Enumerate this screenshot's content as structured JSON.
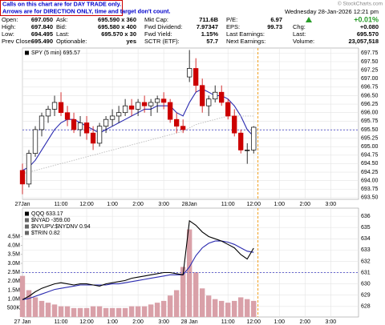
{
  "header": {
    "notice": [
      "Calls on this chart are for DAY TRADE only.",
      "Arrows are for DIRECTION ONLY, time and target don't count."
    ],
    "copyright": "© StockCharts.com",
    "date": "Wednesday 28-Jan-2026 12:21 pm",
    "quote": [
      [
        [
          "Open:",
          "697.050"
        ],
        [
          "Ask:",
          "695.590 x 360"
        ],
        [
          "Mkt Cap:",
          "711.6B"
        ],
        [
          "P/E:",
          "6.97"
        ],
        [
          "+0.01%"
        ]
      ],
      [
        [
          "High:",
          "697.840"
        ],
        [
          "Bid:",
          "695.580 x 400"
        ],
        [
          "Fwd Dividend:",
          "7.97347"
        ],
        [
          "EPS:",
          "99.73"
        ],
        [
          "Chg:",
          "+0.080"
        ]
      ],
      [
        [
          "Low:",
          "694.495"
        ],
        [
          "Last:",
          "695.570 x 30"
        ],
        [
          "Fwd Yield:",
          "1.15%"
        ],
        [
          "Last Earnings:"
        ],
        [
          "Last:",
          "695.570"
        ]
      ],
      [
        [
          "Prev Close:",
          "695.490"
        ],
        [
          "Optionable:",
          "yes"
        ],
        [
          "SCTR (ETF):",
          "57.7"
        ],
        [
          "Next Earnings:"
        ],
        [
          "Volume:",
          "23,057,518"
        ]
      ]
    ]
  },
  "chart_data": [
    {
      "type": "candlestick",
      "title": "SPY (5 min) 695.57",
      "x": [
        0,
        3,
        6,
        9,
        12,
        15,
        18,
        21,
        24,
        27,
        30,
        33,
        36,
        39,
        42,
        45,
        48,
        51,
        54,
        57,
        60,
        63,
        66,
        69,
        72,
        75,
        78,
        81,
        84,
        87,
        90,
        93,
        96,
        99,
        102,
        105,
        108
      ],
      "open": [
        694.3,
        693.9,
        694.8,
        695.5,
        695.9,
        696.1,
        696.3,
        696.0,
        695.8,
        695.5,
        695.7,
        695.4,
        695.1,
        695.6,
        695.8,
        695.9,
        696.0,
        696.2,
        696.1,
        696.3,
        696.2,
        696.3,
        696.4,
        696.3,
        695.8,
        695.6,
        697.05,
        697.3,
        696.8,
        696.2,
        696.4,
        696.6,
        696.3,
        695.9,
        695.4,
        694.9,
        694.9
      ],
      "high": [
        694.5,
        694.9,
        695.6,
        696.0,
        696.2,
        696.5,
        696.6,
        696.2,
        696.0,
        695.9,
        695.9,
        695.6,
        695.7,
        695.9,
        696.1,
        696.2,
        696.4,
        696.4,
        696.4,
        696.5,
        696.4,
        696.5,
        696.6,
        696.4,
        696.0,
        695.8,
        697.84,
        697.6,
        697.0,
        696.5,
        696.8,
        696.8,
        696.4,
        696.1,
        695.5,
        695.1,
        695.6
      ],
      "low": [
        693.6,
        693.8,
        694.7,
        695.3,
        695.7,
        695.9,
        695.9,
        695.6,
        695.4,
        695.3,
        695.2,
        694.9,
        695.0,
        695.4,
        695.6,
        695.7,
        695.9,
        695.9,
        695.9,
        696.0,
        695.9,
        696.0,
        696.1,
        695.7,
        695.4,
        695.4,
        696.9,
        696.6,
        696.0,
        695.9,
        696.3,
        696.2,
        695.8,
        695.3,
        694.8,
        694.495,
        694.8
      ],
      "close": [
        693.9,
        694.8,
        695.5,
        695.9,
        696.1,
        696.3,
        696.0,
        695.8,
        695.5,
        695.7,
        695.4,
        695.1,
        695.6,
        695.8,
        695.9,
        696.0,
        696.2,
        696.1,
        696.3,
        696.2,
        696.3,
        696.4,
        696.3,
        695.8,
        695.6,
        695.5,
        697.3,
        696.8,
        696.2,
        696.4,
        696.6,
        696.3,
        695.9,
        695.4,
        694.9,
        694.9,
        695.57
      ],
      "up_color": "#000000",
      "down_color": "#cc0000",
      "series": [
        {
          "color": "#2b2bb0",
          "values": [
            694.3,
            694.4,
            694.6,
            694.9,
            695.2,
            695.5,
            695.7,
            695.8,
            695.8,
            695.7,
            695.6,
            695.5,
            695.4,
            695.5,
            695.6,
            695.7,
            695.8,
            695.9,
            696.0,
            696.1,
            696.1,
            696.2,
            696.2,
            696.2,
            696.0,
            695.9,
            696.3,
            696.6,
            696.7,
            696.6,
            696.5,
            696.5,
            696.4,
            696.2,
            695.9,
            695.5,
            695.3
          ]
        },
        {
          "color": "#bbbbbb",
          "dash": true,
          "values": [
            694.2,
            694.25,
            694.3,
            694.35,
            694.4,
            694.45,
            694.5,
            694.55,
            694.6,
            694.65,
            694.7,
            694.75,
            694.8,
            694.85,
            694.9,
            694.95,
            695.0,
            695.05,
            695.1,
            695.15,
            695.2,
            695.25,
            695.3,
            695.35,
            695.4,
            695.45,
            695.55,
            695.65,
            695.7,
            695.75,
            695.8,
            695.85,
            695.9,
            695.9,
            695.9,
            695.9,
            695.9
          ]
        }
      ],
      "hline": 695.49,
      "hline_color": "#5555cc",
      "vline": 110,
      "vline_color": "#f0a020",
      "xlim": [
        0,
        157
      ],
      "ylim": [
        693.45,
        697.9
      ],
      "xticks": [
        {
          "value": 0,
          "label": "27Jan"
        },
        {
          "value": 18,
          "label": "11:00"
        },
        {
          "value": 30,
          "label": "12:00"
        },
        {
          "value": 42,
          "label": "1:00"
        },
        {
          "value": 54,
          "label": "2:00"
        },
        {
          "value": 66,
          "label": "3:00"
        },
        {
          "value": 78,
          "label": "28Jan"
        },
        {
          "value": 96,
          "label": "11:00"
        },
        {
          "value": 108,
          "label": "12:00"
        },
        {
          "value": 120,
          "label": "1:00"
        },
        {
          "value": 132,
          "label": "2:00"
        },
        {
          "value": 144,
          "label": "3:00"
        }
      ],
      "yticks": [
        {
          "value": 693.5,
          "label": "693.50"
        },
        693.75,
        {
          "value": 694,
          "label": "694.00"
        },
        694.25,
        {
          "value": 694.5,
          "label": "694.50"
        },
        694.75,
        {
          "value": 695,
          "label": "695.00"
        },
        695.25,
        {
          "value": 695.5,
          "label": "695.50"
        },
        695.75,
        {
          "value": 696,
          "label": "696.00"
        },
        696.25,
        {
          "value": 696.5,
          "label": "696.50"
        },
        696.75,
        {
          "value": 697,
          "label": "697.00"
        },
        697.25,
        {
          "value": 697.5,
          "label": "697.50"
        },
        697.75
      ],
      "grid": true
    },
    {
      "type": "line",
      "title": "QQQ 633.17",
      "legend": [
        "$NYAD -359.00",
        "$NYUPV:$NYDNV 0.94",
        "$TRIN 0.82"
      ],
      "x": [
        0,
        3,
        6,
        9,
        12,
        15,
        18,
        21,
        24,
        27,
        30,
        33,
        36,
        39,
        42,
        45,
        48,
        51,
        54,
        57,
        60,
        63,
        66,
        69,
        72,
        75,
        78,
        81,
        84,
        87,
        90,
        93,
        96,
        99,
        102,
        105,
        108
      ],
      "series": [
        {
          "color": "#d9a0a8",
          "type": "bar",
          "axis": "y2",
          "values": [
            2300000,
            1500000,
            1100000,
            900000,
            800000,
            700000,
            600000,
            600000,
            500000,
            500000,
            500000,
            600000,
            600000,
            500000,
            500000,
            500000,
            500000,
            600000,
            600000,
            600000,
            700000,
            800000,
            900000,
            1200000,
            1500000,
            2800000,
            4900000,
            2500000,
            1600000,
            1200000,
            1000000,
            900000,
            800000,
            900000,
            1100000,
            1000000,
            900000
          ]
        },
        {
          "color": "#2b2bb0",
          "values": [
            628.6,
            628.7,
            628.9,
            629.1,
            629.3,
            629.5,
            629.6,
            629.7,
            629.8,
            629.9,
            629.9,
            629.9,
            629.9,
            629.9,
            630.0,
            630.0,
            630.1,
            630.2,
            630.3,
            630.4,
            630.5,
            630.6,
            630.7,
            630.8,
            630.8,
            630.8,
            631.5,
            632.5,
            633.2,
            633.6,
            633.8,
            633.8,
            633.7,
            633.5,
            633.2,
            632.9,
            632.8
          ]
        },
        {
          "color": "#000000",
          "values": [
            628.6,
            628.9,
            629.3,
            629.6,
            629.8,
            630.0,
            630.1,
            630.0,
            629.9,
            630.0,
            630.0,
            629.9,
            629.8,
            630.0,
            630.1,
            630.2,
            630.3,
            630.5,
            630.6,
            630.7,
            630.8,
            630.9,
            631.0,
            631.0,
            630.9,
            630.8,
            635.6,
            635.2,
            634.6,
            634.2,
            634.0,
            633.8,
            633.5,
            633.2,
            632.6,
            632.2,
            633.17
          ]
        }
      ],
      "hline": 631.0,
      "hline_color": "#5555cc",
      "vline": 110,
      "vline_color": "#f0a020",
      "xlim": [
        0,
        157
      ],
      "ylim": [
        627.06,
        636.72
      ],
      "y2lim": [
        0,
        6090000
      ],
      "xticks": [
        {
          "value": 0,
          "label": "27 Jan"
        },
        {
          "value": 18,
          "label": "11:00"
        },
        {
          "value": 30,
          "label": "12:00"
        },
        {
          "value": 42,
          "label": "1:00"
        },
        {
          "value": 54,
          "label": "2:00"
        },
        {
          "value": 66,
          "label": "3:00"
        },
        {
          "value": 78,
          "label": "28 Jan"
        },
        {
          "value": 96,
          "label": "11:00"
        },
        {
          "value": 108,
          "label": "12:00"
        },
        {
          "value": 120,
          "label": "1:00"
        },
        {
          "value": 132,
          "label": "2:00"
        },
        {
          "value": 144,
          "label": "3:00"
        }
      ],
      "yticks": [
        628,
        629,
        630,
        631,
        632,
        633,
        634,
        635,
        636
      ],
      "y2ticks": [
        {
          "value": 500000,
          "label": "500K"
        },
        {
          "value": 1000000,
          "label": "1.0M"
        },
        {
          "value": 1500000,
          "label": "1.5M"
        },
        {
          "value": 2000000,
          "label": "2.0M"
        },
        {
          "value": 2500000,
          "label": "2.5M"
        },
        {
          "value": 3000000,
          "label": "3.0M"
        },
        {
          "value": 3500000,
          "label": "3.5M"
        },
        {
          "value": 4000000,
          "label": "4.0M"
        },
        {
          "value": 4500000,
          "label": "4.5M"
        }
      ],
      "grid": true
    }
  ]
}
